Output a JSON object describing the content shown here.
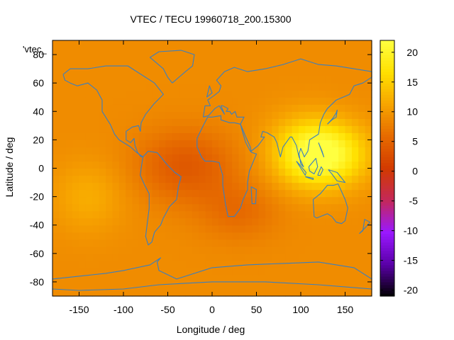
{
  "chart_data": {
    "type": "heatmap",
    "title": "VTEC / TECU 19960718_200.15300",
    "xlabel": "Longitude / deg",
    "ylabel": "Latitude / deg",
    "key_label": "'vtec_",
    "xlim": [
      -180,
      180
    ],
    "ylim": [
      -90,
      90
    ],
    "xticks": [
      -150,
      -100,
      -50,
      0,
      50,
      100,
      150
    ],
    "yticks": [
      -80,
      -60,
      -40,
      -20,
      0,
      20,
      40,
      60,
      80
    ],
    "colorbar": {
      "range": [
        -21,
        22
      ],
      "ticks": [
        20,
        15,
        10,
        5,
        0,
        -5,
        -10,
        -15,
        -20
      ],
      "palette": [
        "#000000",
        "#5a00a8",
        "#9a18ff",
        "#c4285a",
        "#d23a00",
        "#e66a00",
        "#f7a400",
        "#ffe000",
        "#ffff40"
      ]
    },
    "field": {
      "background_vtec": 9,
      "features": [
        {
          "name": "east-asia-pacific-max",
          "lon": 130,
          "lat": 10,
          "vtec": 21,
          "lon_width": 45,
          "lat_width": 22
        },
        {
          "name": "indian-ocean-max",
          "lon": 100,
          "lat": 12,
          "vtec": 14,
          "lon_width": 40,
          "lat_width": 25
        },
        {
          "name": "africa-atlantic-min",
          "lon": -30,
          "lat": 2,
          "vtec": 4,
          "lon_width": 55,
          "lat_width": 25
        },
        {
          "name": "south-atlantic-min",
          "lon": 30,
          "lat": -30,
          "vtec": 6,
          "lon_width": 45,
          "lat_width": 20
        },
        {
          "name": "south-pacific-high",
          "lon": -140,
          "lat": -20,
          "vtec": 12,
          "lon_width": 40,
          "lat_width": 25
        }
      ]
    },
    "coastline_color": "#3a7fc0"
  }
}
